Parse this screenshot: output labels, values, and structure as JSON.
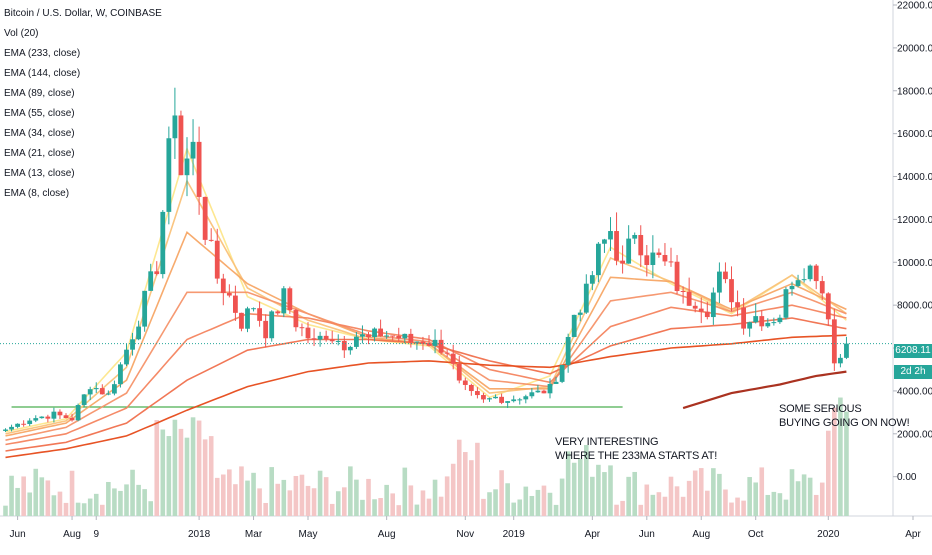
{
  "legend": {
    "title": "Bitcoin / U.S. Dollar, W, COINBASE",
    "indicators": [
      "Vol (20)",
      "EMA (233, close)",
      "EMA (144, close)",
      "EMA (89, close)",
      "EMA (55, close)",
      "EMA (34, close)",
      "EMA (21, close)",
      "EMA (13, close)",
      "EMA (8, close)"
    ]
  },
  "annotations": {
    "note_233ma": [
      "VERY INTERESTING",
      "WHERE THE 233MA STARTS AT!"
    ],
    "note_buying": [
      "SOME SERIOUS",
      "BUYING GOING ON NOW!"
    ]
  },
  "price_scale": {
    "last_price": "6208.11",
    "countdown": "2d 2h"
  },
  "colors": {
    "up": "#26a69a",
    "down": "#ef5350",
    "vol_up": "#b8dcc4",
    "vol_down": "#f4c6c6",
    "support_line": "#4caf50",
    "last_price_line": "#26a69a",
    "countdown_bg": "#26a69a"
  },
  "chart_data": {
    "type": "candlestick",
    "title": "Bitcoin / U.S. Dollar, W, COINBASE",
    "y_axis": {
      "min": -1000,
      "max": 22000,
      "ticks": [
        0,
        2000,
        4000,
        6000,
        8000,
        10000,
        12000,
        14000,
        16000,
        18000,
        20000,
        22000
      ],
      "tick_labels": [
        "0.00",
        "2000.00",
        "4000.00",
        "6000.00",
        "8000.00",
        "10000.00",
        "12000.00",
        "14000.00",
        "16000.00",
        "18000.00",
        "20000.00",
        "22000.00"
      ]
    },
    "x_axis": {
      "start": "2017-05-22",
      "weeks": 149,
      "tick_labels": [
        {
          "label": "Jun",
          "date": "2017-06-05"
        },
        {
          "label": "Aug",
          "date": "2017-08-07"
        },
        {
          "label": "9",
          "date": "2017-09-04"
        },
        {
          "label": "2018",
          "date": "2018-01-01"
        },
        {
          "label": "Mar",
          "date": "2018-03-05"
        },
        {
          "label": "May",
          "date": "2018-05-07"
        },
        {
          "label": "Aug",
          "date": "2018-08-06"
        },
        {
          "label": "Nov",
          "date": "2018-11-05"
        },
        {
          "label": "2019",
          "date": "2018-12-31"
        },
        {
          "label": "Apr",
          "date": "2019-04-01"
        },
        {
          "label": "Jun",
          "date": "2019-06-03"
        },
        {
          "label": "Aug",
          "date": "2019-08-05"
        },
        {
          "label": "Oct",
          "date": "2019-10-07"
        },
        {
          "label": "2020",
          "date": "2019-12-30"
        },
        {
          "label": "Apr",
          "date": "2020-04-06"
        }
      ]
    },
    "anchors": [
      [
        0,
        2200
      ],
      [
        4,
        2700
      ],
      [
        8,
        2900
      ],
      [
        11,
        2700
      ],
      [
        14,
        4300
      ],
      [
        17,
        3800
      ],
      [
        19,
        5200
      ],
      [
        22,
        7400
      ],
      [
        25,
        9900
      ],
      [
        28,
        17500
      ],
      [
        29,
        14200
      ],
      [
        31,
        15300
      ],
      [
        33,
        11500
      ],
      [
        35,
        9300
      ],
      [
        37,
        8400
      ],
      [
        39,
        7200
      ],
      [
        41,
        8000
      ],
      [
        43,
        6800
      ],
      [
        46,
        8400
      ],
      [
        48,
        7200
      ],
      [
        51,
        6200
      ],
      [
        53,
        6700
      ],
      [
        56,
        6200
      ],
      [
        58,
        6600
      ],
      [
        60,
        6400
      ],
      [
        62,
        6700
      ],
      [
        65,
        6500
      ],
      [
        67,
        6300
      ],
      [
        69,
        6400
      ],
      [
        71,
        6200
      ],
      [
        73,
        5900
      ],
      [
        75,
        4300
      ],
      [
        77,
        3800
      ],
      [
        79,
        3500
      ],
      [
        81,
        3700
      ],
      [
        83,
        3600
      ],
      [
        86,
        3800
      ],
      [
        88,
        3900
      ],
      [
        90,
        4100
      ],
      [
        92,
        5300
      ],
      [
        94,
        7600
      ],
      [
        96,
        8500
      ],
      [
        98,
        10400
      ],
      [
        100,
        11500
      ],
      [
        102,
        9600
      ],
      [
        104,
        11600
      ],
      [
        106,
        10300
      ],
      [
        108,
        10100
      ],
      [
        110,
        9600
      ],
      [
        112,
        8300
      ],
      [
        114,
        8300
      ],
      [
        116,
        7900
      ],
      [
        118,
        9200
      ],
      [
        120,
        8500
      ],
      [
        122,
        7300
      ],
      [
        124,
        7500
      ],
      [
        126,
        7300
      ],
      [
        128,
        7600
      ],
      [
        130,
        9300
      ],
      [
        132,
        9800
      ],
      [
        134,
        9600
      ],
      [
        136,
        7700
      ],
      [
        137,
        5300
      ],
      [
        138,
        5600
      ],
      [
        139,
        6208
      ]
    ],
    "ema": {
      "233": {
        "color": "#a52714",
        "start_week": 112,
        "values": [
          [
            112,
            3200
          ],
          [
            120,
            3900
          ],
          [
            128,
            4300
          ],
          [
            134,
            4700
          ],
          [
            139,
            4900
          ]
        ]
      },
      "144": {
        "color": "#e64a19",
        "values": [
          [
            0,
            900
          ],
          [
            10,
            1300
          ],
          [
            20,
            1900
          ],
          [
            30,
            3100
          ],
          [
            40,
            4200
          ],
          [
            50,
            4900
          ],
          [
            60,
            5300
          ],
          [
            70,
            5400
          ],
          [
            80,
            5200
          ],
          [
            90,
            5100
          ],
          [
            100,
            5600
          ],
          [
            110,
            6000
          ],
          [
            120,
            6200
          ],
          [
            130,
            6500
          ],
          [
            139,
            6600
          ]
        ]
      },
      "89": {
        "color": "#f0704d",
        "values": [
          [
            0,
            1200
          ],
          [
            10,
            1600
          ],
          [
            20,
            2500
          ],
          [
            30,
            4500
          ],
          [
            40,
            5900
          ],
          [
            50,
            6400
          ],
          [
            60,
            6400
          ],
          [
            70,
            6200
          ],
          [
            80,
            5400
          ],
          [
            90,
            4800
          ],
          [
            100,
            6100
          ],
          [
            110,
            6900
          ],
          [
            120,
            7100
          ],
          [
            130,
            7400
          ],
          [
            139,
            6900
          ]
        ]
      },
      "55": {
        "color": "#f4845f",
        "values": [
          [
            0,
            1500
          ],
          [
            10,
            2000
          ],
          [
            20,
            3200
          ],
          [
            30,
            6400
          ],
          [
            40,
            7600
          ],
          [
            50,
            7400
          ],
          [
            60,
            6800
          ],
          [
            70,
            6400
          ],
          [
            80,
            5000
          ],
          [
            90,
            4400
          ],
          [
            100,
            7000
          ],
          [
            110,
            7900
          ],
          [
            120,
            7500
          ],
          [
            130,
            8000
          ],
          [
            139,
            7400
          ]
        ]
      },
      "34": {
        "color": "#f5936a",
        "values": [
          [
            0,
            1700
          ],
          [
            10,
            2300
          ],
          [
            20,
            3900
          ],
          [
            30,
            8600
          ],
          [
            40,
            8600
          ],
          [
            50,
            7600
          ],
          [
            60,
            6600
          ],
          [
            70,
            6300
          ],
          [
            80,
            4500
          ],
          [
            90,
            4200
          ],
          [
            100,
            8200
          ],
          [
            110,
            8600
          ],
          [
            120,
            7700
          ],
          [
            130,
            8600
          ],
          [
            139,
            7600
          ]
        ]
      },
      "21": {
        "color": "#f7a766",
        "values": [
          [
            0,
            1900
          ],
          [
            10,
            2500
          ],
          [
            20,
            4500
          ],
          [
            30,
            11400
          ],
          [
            40,
            9000
          ],
          [
            50,
            7600
          ],
          [
            60,
            6500
          ],
          [
            70,
            6200
          ],
          [
            80,
            4100
          ],
          [
            90,
            4100
          ],
          [
            100,
            9300
          ],
          [
            110,
            9100
          ],
          [
            120,
            7800
          ],
          [
            130,
            9000
          ],
          [
            139,
            7800
          ]
        ]
      },
      "13": {
        "color": "#fac27a",
        "values": [
          [
            0,
            2000
          ],
          [
            10,
            2600
          ],
          [
            20,
            5100
          ],
          [
            30,
            13800
          ],
          [
            40,
            8800
          ],
          [
            50,
            7300
          ],
          [
            60,
            6400
          ],
          [
            70,
            6200
          ],
          [
            80,
            3900
          ],
          [
            90,
            4200
          ],
          [
            100,
            10200
          ],
          [
            110,
            9100
          ],
          [
            120,
            7700
          ],
          [
            130,
            9400
          ],
          [
            139,
            7600
          ]
        ]
      },
      "8": {
        "color": "#fde68b",
        "values": [
          [
            0,
            2100
          ],
          [
            10,
            2700
          ],
          [
            20,
            5800
          ],
          [
            30,
            15300
          ],
          [
            40,
            8400
          ],
          [
            50,
            7100
          ],
          [
            60,
            6400
          ],
          [
            70,
            6100
          ],
          [
            80,
            3700
          ],
          [
            90,
            4700
          ],
          [
            100,
            10700
          ],
          [
            110,
            9000
          ],
          [
            120,
            7600
          ],
          [
            130,
            9400
          ],
          [
            139,
            7300
          ]
        ]
      }
    },
    "support_level": 3250,
    "last_price": 6208.11
  }
}
